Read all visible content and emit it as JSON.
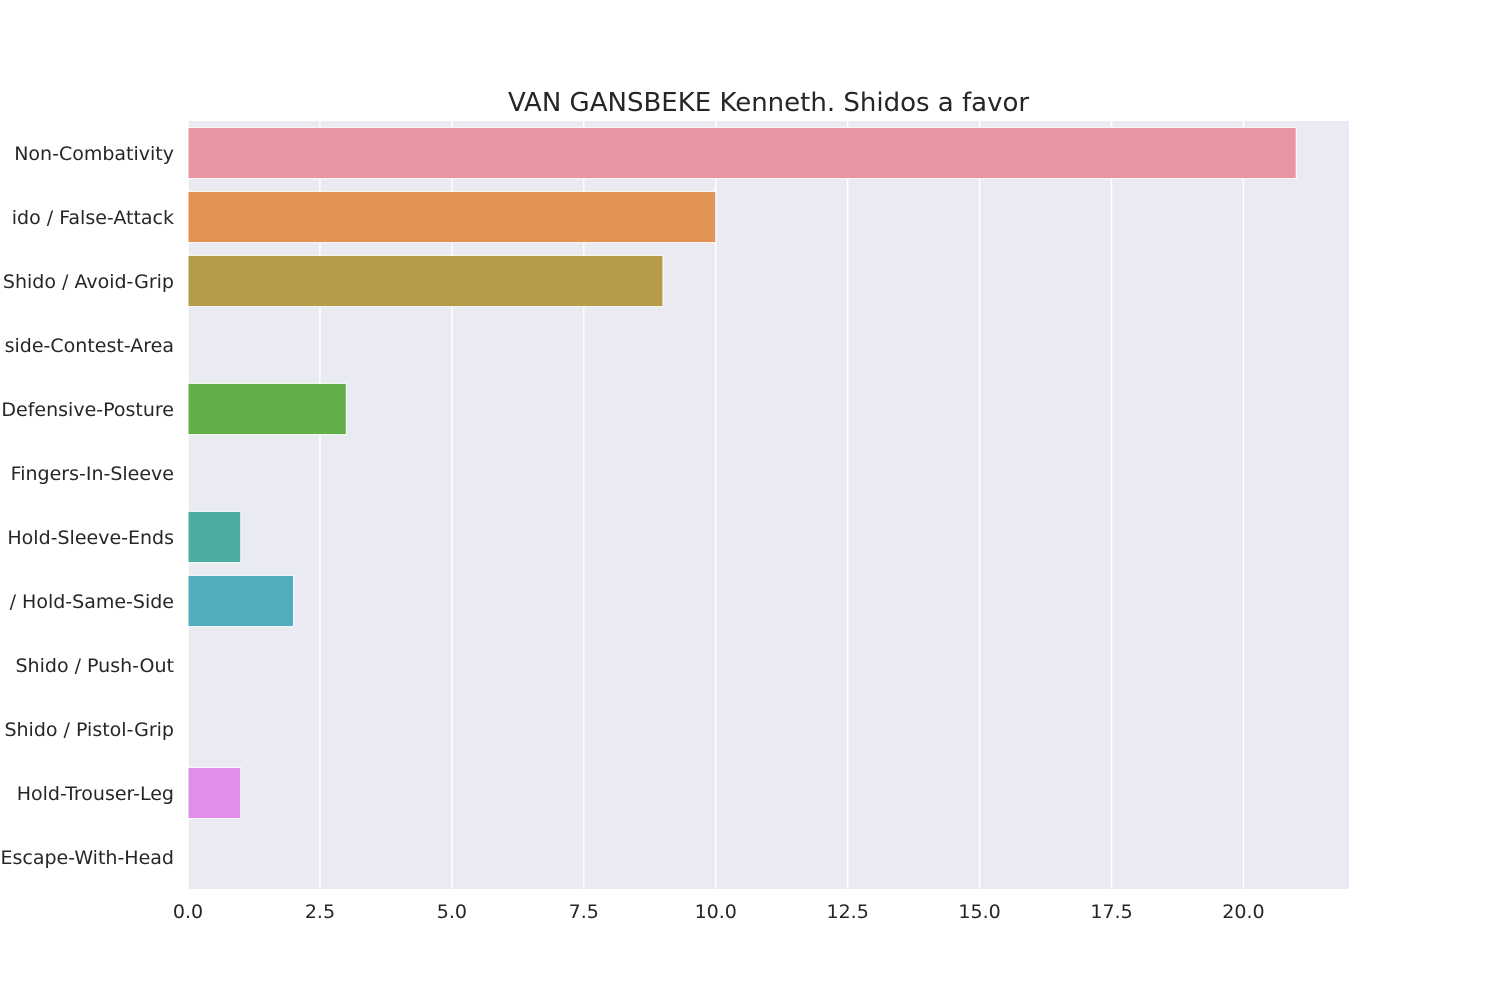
{
  "chart_data": {
    "type": "bar",
    "orientation": "horizontal",
    "title": "VAN GANSBEKE Kenneth. Shidos a favor",
    "xlabel": "",
    "ylabel": "",
    "xlim": [
      0,
      22
    ],
    "x_ticks": [
      "0.0",
      "2.5",
      "5.0",
      "7.5",
      "10.0",
      "12.5",
      "15.0",
      "17.5",
      "20.0"
    ],
    "x_tick_values": [
      0,
      2.5,
      5,
      7.5,
      10,
      12.5,
      15,
      17.5,
      20
    ],
    "categories": [
      "Non-Combativity",
      "ido / False-Attack",
      "Shido / Avoid-Grip",
      "side-Contest-Area",
      "Defensive-Posture",
      "Fingers-In-Sleeve",
      "Hold-Sleeve-Ends",
      "/ Hold-Same-Side",
      "Shido / Push-Out",
      "Shido / Pistol-Grip",
      "Hold-Trouser-Leg",
      "Escape-With-Head"
    ],
    "values": [
      21,
      10,
      9,
      0,
      3,
      0,
      1,
      2,
      0,
      0,
      1,
      0
    ],
    "colors": [
      "#e995a3",
      "#e09353",
      "#b69c4a",
      "#94a947",
      "#62ae49",
      "#4aae8a",
      "#4cac9f",
      "#52adbf",
      "#6aa9e0",
      "#b39ae8",
      "#e08ee8",
      "#e98dbf"
    ],
    "grid": true,
    "background": "#eaeaf2",
    "grid_color": "#ffffff"
  }
}
